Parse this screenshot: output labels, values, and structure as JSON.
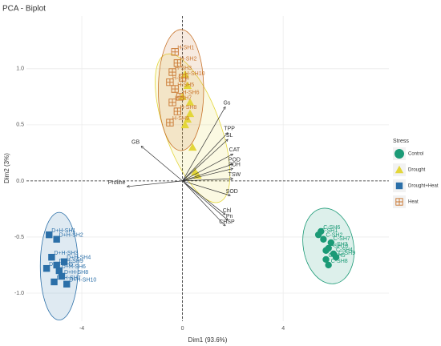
{
  "chart_data": {
    "type": "scatter",
    "title": "PCA - Biplot",
    "xlabel": "Dim1 (93.6%)",
    "ylabel": "Dim2 (3%)",
    "xlim": [
      -6.2,
      8.2
    ],
    "ylim": [
      -1.25,
      1.47
    ],
    "xticks": [
      -4,
      0,
      4
    ],
    "yticks": [
      {
        "value": -1,
        "label": "-1.0"
      },
      -0.5,
      {
        "value": 0,
        "label": "0.0"
      },
      0.5,
      {
        "value": 1,
        "label": "1.0"
      }
    ],
    "grid": true,
    "legend_title": "Stress",
    "legend": "right",
    "series": [
      {
        "name": "Control",
        "color": "#1b9a76",
        "marker": "circle",
        "x": [
          5.4,
          5.6,
          5.8,
          6.0,
          5.7,
          5.5,
          5.9,
          5.8,
          6.1,
          5.7
        ],
        "y": [
          -0.48,
          -0.52,
          -0.6,
          -0.65,
          -0.7,
          -0.45,
          -0.55,
          -0.75,
          -0.68,
          -0.62
        ],
        "labels": [
          "C-SH1",
          "C-SH2",
          "C-SH3",
          "C-SH4",
          "C-SH5",
          "C-SH6",
          "C-SH7",
          "C-SH8",
          "C-SH9",
          "C-SH10"
        ],
        "ellipse": {
          "cx": 5.8,
          "cy": -0.58,
          "rx": 1.0,
          "ry": 0.34,
          "angle": -10
        }
      },
      {
        "name": "Drought",
        "color": "#e3d63a",
        "marker": "triangle",
        "x": [
          0.1,
          0.2,
          0.0,
          0.3,
          0.2,
          0.1,
          0.5,
          0.6,
          0.4,
          0.3
        ],
        "y": [
          0.95,
          0.85,
          0.75,
          0.7,
          0.55,
          0.5,
          0.08,
          0.05,
          0.3,
          0.6
        ],
        "ellipse": {
          "cx": 0.4,
          "cy": 0.47,
          "rx": 1.1,
          "ry": 0.7,
          "angle": -20
        }
      },
      {
        "name": "Drought+Heat",
        "color": "#2b6fa8",
        "marker": "square",
        "x": [
          -5.3,
          -5.0,
          -5.2,
          -4.7,
          -5.4,
          -4.9,
          -5.1,
          -4.8,
          -5.0,
          -4.6
        ],
        "y": [
          -0.48,
          -0.52,
          -0.68,
          -0.72,
          -0.78,
          -0.8,
          -0.9,
          -0.85,
          -0.75,
          -0.92
        ],
        "labels": [
          "D+H-SH1",
          "D+H-SH2",
          "D+H-SH3",
          "D+H-SH4",
          "D+H-SH5",
          "D+H-SH6",
          "D+H-SH7",
          "D+H-SH8",
          "D+H-SH9",
          "D+H-SH10"
        ],
        "ellipse": {
          "cx": -4.9,
          "cy": -0.76,
          "rx": 0.75,
          "ry": 0.48,
          "angle": 0
        }
      },
      {
        "name": "Heat",
        "color": "#c8742c",
        "marker": "square-plus",
        "x": [
          -0.3,
          -0.2,
          -0.4,
          -0.5,
          -0.3,
          -0.1,
          -0.4,
          -0.2,
          -0.5,
          0.0
        ],
        "y": [
          1.15,
          1.05,
          0.97,
          0.88,
          0.82,
          0.75,
          0.7,
          0.62,
          0.52,
          0.92
        ],
        "labels": [
          "H-SH1",
          "H-SH2",
          "H-SH3",
          "H-SH4",
          "H-SH5",
          "H-SH6",
          "H-SH7",
          "H-SH8",
          "H-SH9",
          "H-SH10"
        ],
        "ellipse": {
          "cx": -0.06,
          "cy": 0.81,
          "rx": 0.9,
          "ry": 0.54,
          "angle": 0
        }
      }
    ],
    "loadings": [
      {
        "name": "Gs",
        "x": 1.7,
        "y": 0.66
      },
      {
        "name": "TPP",
        "x": 1.8,
        "y": 0.43
      },
      {
        "name": "SL",
        "x": 1.8,
        "y": 0.37
      },
      {
        "name": "CAT",
        "x": 2.0,
        "y": 0.24
      },
      {
        "name": "POD",
        "x": 2.0,
        "y": 0.15
      },
      {
        "name": "PDH",
        "x": 2.0,
        "y": 0.11
      },
      {
        "name": "TSW",
        "x": 2.0,
        "y": 0.02
      },
      {
        "name": "SOD",
        "x": 1.9,
        "y": -0.13
      },
      {
        "name": "Chl",
        "x": 1.7,
        "y": -0.3
      },
      {
        "name": "Pn",
        "x": 1.8,
        "y": -0.35
      },
      {
        "name": "CHSP",
        "x": 1.7,
        "y": -0.4
      },
      {
        "name": "GB",
        "x": -1.64,
        "y": 0.31
      },
      {
        "name": "Proline",
        "x": -2.2,
        "y": -0.05
      }
    ]
  }
}
